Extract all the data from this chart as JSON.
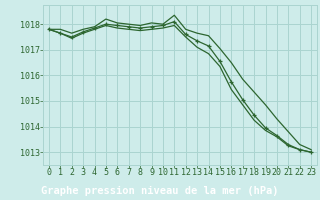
{
  "title": "Graphe pression niveau de la mer (hPa)",
  "background_color": "#ceecea",
  "plot_bg_color": "#ceecea",
  "grid_color": "#aad4d0",
  "line_color": "#2d6630",
  "marker_color": "#2d6630",
  "label_bg_color": "#3a6b3a",
  "label_text_color": "#ffffff",
  "tick_color": "#2d6630",
  "xlim": [
    -0.5,
    23.5
  ],
  "ylim": [
    1012.5,
    1018.75
  ],
  "yticks": [
    1013,
    1014,
    1015,
    1016,
    1017,
    1018
  ],
  "xticks": [
    0,
    1,
    2,
    3,
    4,
    5,
    6,
    7,
    8,
    9,
    10,
    11,
    12,
    13,
    14,
    15,
    16,
    17,
    18,
    19,
    20,
    21,
    22,
    23
  ],
  "series": [
    [
      1017.8,
      1017.8,
      1017.65,
      1017.8,
      1017.9,
      1018.2,
      1018.05,
      1018.0,
      1017.95,
      1018.05,
      1018.0,
      1018.35,
      1017.8,
      1017.65,
      1017.55,
      1017.05,
      1016.5,
      1015.85,
      1015.35,
      1014.85,
      1014.3,
      1013.8,
      1013.3,
      1013.1
    ],
    [
      1017.8,
      1017.65,
      1017.5,
      1017.7,
      1017.85,
      1018.0,
      1017.95,
      1017.9,
      1017.85,
      1017.9,
      1017.95,
      1018.1,
      1017.6,
      1017.35,
      1017.15,
      1016.55,
      1015.75,
      1015.05,
      1014.45,
      1013.95,
      1013.65,
      1013.3,
      1013.1,
      1013.0
    ],
    [
      1017.8,
      1017.65,
      1017.45,
      1017.65,
      1017.8,
      1017.95,
      1017.85,
      1017.8,
      1017.75,
      1017.8,
      1017.85,
      1017.95,
      1017.5,
      1017.1,
      1016.85,
      1016.35,
      1015.45,
      1014.85,
      1014.25,
      1013.85,
      1013.6,
      1013.25,
      1013.1,
      1013.0
    ]
  ],
  "marker_series_index": 1,
  "title_fontsize": 7.5,
  "tick_fontsize": 6.0
}
